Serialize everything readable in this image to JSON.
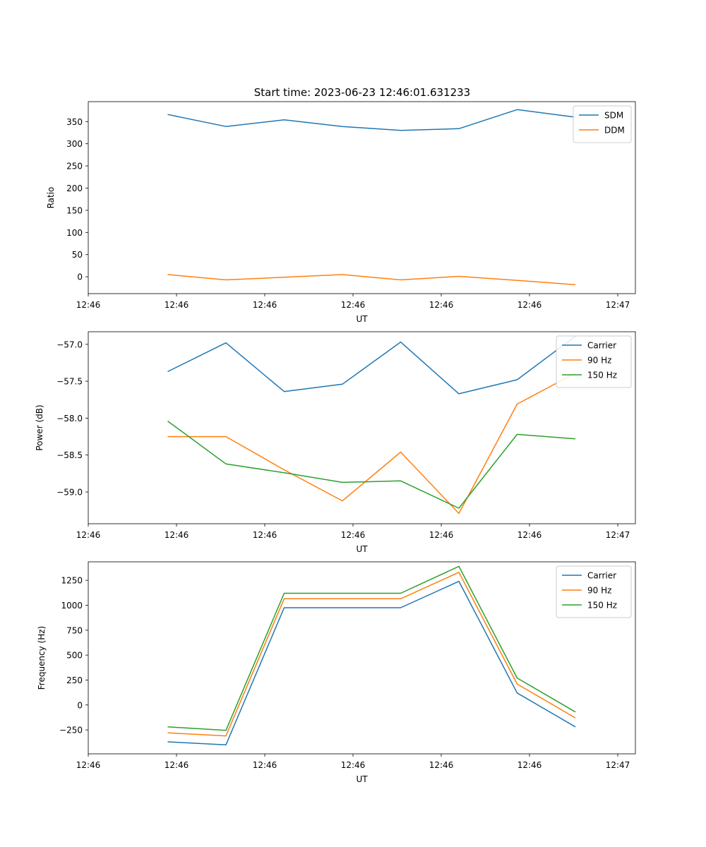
{
  "title": "Start time: 2023-06-23 12:46:01.631233",
  "chart_data": [
    {
      "type": "line",
      "xlabel": "UT",
      "ylabel": "Ratio",
      "x": [
        0.9,
        1.56,
        2.22,
        2.88,
        3.54,
        4.2,
        4.86,
        5.52
      ],
      "xlim": [
        0.0,
        6.2
      ],
      "xticks": [
        0.0,
        1.0,
        2.0,
        3.0,
        4.0,
        5.0,
        6.0
      ],
      "xtick_labels": [
        "12:46",
        "12:46",
        "12:46",
        "12:46",
        "12:46",
        "12:46",
        "12:47"
      ],
      "ylim": [
        -38,
        395
      ],
      "yticks": [
        0,
        50,
        100,
        150,
        200,
        250,
        300,
        350
      ],
      "ytick_labels": [
        "0",
        "50",
        "100",
        "150",
        "200",
        "250",
        "300",
        "350"
      ],
      "legend": "top-right",
      "series": [
        {
          "name": "SDM",
          "color": "#1f77b4",
          "values": [
            366,
            339,
            354,
            339,
            330,
            334,
            377,
            360
          ]
        },
        {
          "name": "DDM",
          "color": "#ff7f0e",
          "values": [
            5,
            -7,
            -1,
            5,
            -7,
            1,
            -8,
            -18
          ]
        }
      ]
    },
    {
      "type": "line",
      "xlabel": "UT",
      "ylabel": "Power (dB)",
      "x": [
        0.9,
        1.56,
        2.22,
        2.88,
        3.54,
        4.2,
        4.86,
        5.52
      ],
      "xlim": [
        0.0,
        6.2
      ],
      "xticks": [
        0.0,
        1.0,
        2.0,
        3.0,
        4.0,
        5.0,
        6.0
      ],
      "xtick_labels": [
        "12:46",
        "12:46",
        "12:46",
        "12:46",
        "12:46",
        "12:46",
        "12:47"
      ],
      "ylim": [
        -59.43,
        -56.83
      ],
      "yticks": [
        -59.0,
        -58.5,
        -58.0,
        -57.5,
        -57.0
      ],
      "ytick_labels": [
        "−59.0",
        "−58.5",
        "−58.0",
        "−57.5",
        "−57.0"
      ],
      "legend": "top-right",
      "series": [
        {
          "name": "Carrier",
          "color": "#1f77b4",
          "values": [
            -57.37,
            -56.98,
            -57.64,
            -57.54,
            -56.97,
            -57.67,
            -57.48,
            -56.89
          ]
        },
        {
          "name": "90 Hz",
          "color": "#ff7f0e",
          "values": [
            -58.25,
            -58.25,
            -58.7,
            -59.12,
            -58.46,
            -59.29,
            -57.81,
            -57.39
          ]
        },
        {
          "name": "150 Hz",
          "color": "#2ca02c",
          "values": [
            -58.04,
            -58.62,
            -58.74,
            -58.87,
            -58.85,
            -59.22,
            -58.22,
            -58.28
          ]
        }
      ]
    },
    {
      "type": "line",
      "xlabel": "UT",
      "ylabel": "Frequency (Hz)",
      "x": [
        0.9,
        1.56,
        2.22,
        2.88,
        3.54,
        4.2,
        4.86,
        5.52
      ],
      "xlim": [
        0.0,
        6.2
      ],
      "xticks": [
        0.0,
        1.0,
        2.0,
        3.0,
        4.0,
        5.0,
        6.0
      ],
      "xtick_labels": [
        "12:46",
        "12:46",
        "12:46",
        "12:46",
        "12:46",
        "12:46",
        "12:47"
      ],
      "ylim": [
        -490,
        1435
      ],
      "yticks": [
        -250,
        0,
        250,
        500,
        750,
        1000,
        1250
      ],
      "ytick_labels": [
        "−250",
        "0",
        "250",
        "500",
        "750",
        "1000",
        "1250"
      ],
      "legend": "top-right",
      "series": [
        {
          "name": "Carrier",
          "color": "#1f77b4",
          "values": [
            -370,
            -400,
            975,
            975,
            975,
            1240,
            120,
            -220
          ]
        },
        {
          "name": "90 Hz",
          "color": "#ff7f0e",
          "values": [
            -280,
            -310,
            1065,
            1065,
            1065,
            1330,
            210,
            -130
          ]
        },
        {
          "name": "150 Hz",
          "color": "#2ca02c",
          "values": [
            -220,
            -255,
            1120,
            1120,
            1120,
            1390,
            270,
            -70
          ]
        }
      ]
    }
  ]
}
